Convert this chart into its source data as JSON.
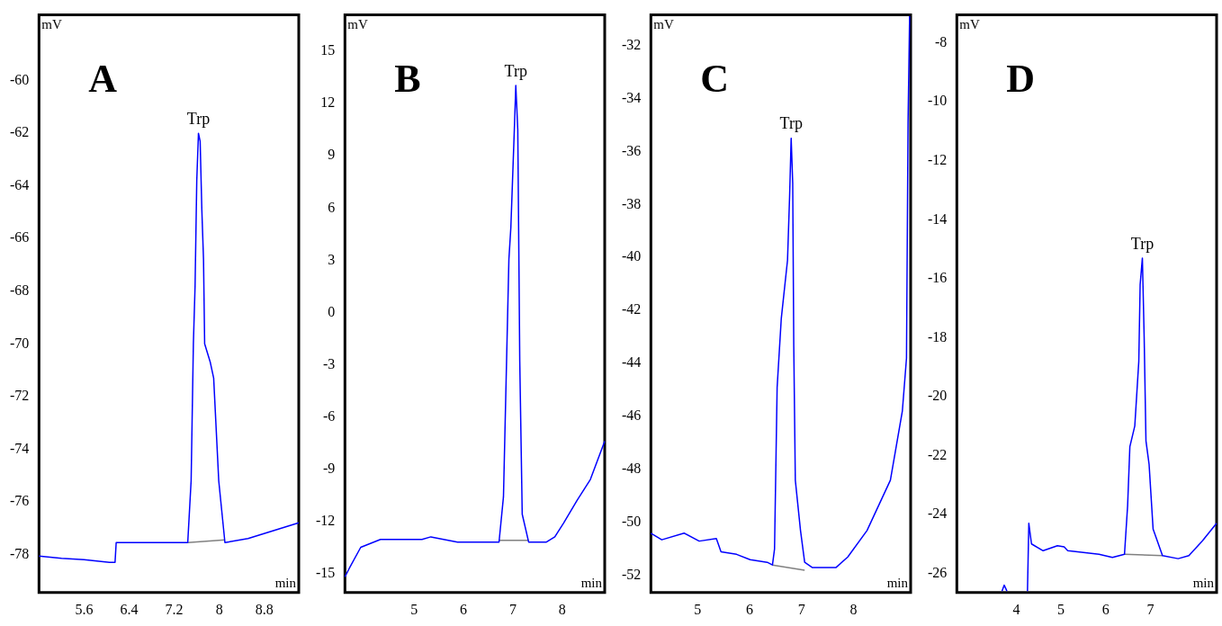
{
  "chart_data": [
    {
      "type": "line",
      "title": "A",
      "xlabel": "min",
      "ylabel": "mV",
      "grid": false,
      "xlim": [
        4.8,
        9.41
      ],
      "ylim": [
        -79.45,
        -57.5
      ],
      "xticks": [
        5.6,
        6.4,
        7.2,
        8,
        8.8
      ],
      "yticks": [
        -60,
        -62,
        -64,
        -66,
        -68,
        -70,
        -72,
        -74,
        -76,
        -78
      ],
      "annotations": [
        {
          "text": "Trp",
          "x": 7.63,
          "y": -62.0
        }
      ],
      "series": [
        {
          "color": "#0000ff",
          "x": [
            4.8,
            5.2,
            5.6,
            6.05,
            6.15,
            6.17,
            6.5,
            7.0,
            7.44,
            7.5,
            7.54,
            7.57,
            7.6,
            7.63,
            7.66,
            7.69,
            7.72,
            7.74,
            7.84,
            7.9,
            7.99,
            8.1,
            8.51,
            8.96,
            9.41
          ],
          "values": [
            -78.06,
            -78.15,
            -78.2,
            -78.3,
            -78.3,
            -77.55,
            -77.55,
            -77.55,
            -77.55,
            -75.2,
            -70.0,
            -67.8,
            -63.8,
            -62.0,
            -62.3,
            -64.9,
            -66.8,
            -70.0,
            -70.7,
            -71.3,
            -75.2,
            -77.55,
            -77.4,
            -77.1,
            -76.8
          ]
        },
        {
          "color": "#808080",
          "x": [
            7.44,
            8.1
          ],
          "values": [
            -77.55,
            -77.45
          ]
        }
      ]
    },
    {
      "type": "line",
      "title": "B",
      "xlabel": "min",
      "ylabel": "mV",
      "grid": false,
      "xlim": [
        3.6,
        8.86
      ],
      "ylim": [
        -16.1,
        17.1
      ],
      "xticks": [
        5,
        6,
        7,
        8
      ],
      "yticks": [
        15,
        12,
        9,
        6,
        3,
        0,
        -3,
        -6,
        -9,
        -12,
        -15
      ],
      "annotations": [
        {
          "text": "Trp",
          "x": 7.06,
          "y": 13.05
        }
      ],
      "series": [
        {
          "color": "#0000ff",
          "x": [
            3.6,
            3.69,
            3.92,
            4.32,
            5.16,
            5.34,
            5.88,
            6.3,
            6.72,
            6.81,
            6.92,
            6.96,
            6.99,
            7.03,
            7.06,
            7.1,
            7.14,
            7.19,
            7.32,
            7.68,
            7.85,
            8.03,
            8.3,
            8.57,
            8.86
          ],
          "values": [
            -15.2,
            -14.7,
            -13.5,
            -13.05,
            -13.05,
            -12.9,
            -13.2,
            -13.2,
            -13.2,
            -10.6,
            3.05,
            4.9,
            7.3,
            10.5,
            13.05,
            10.5,
            -2.8,
            -11.6,
            -13.2,
            -13.2,
            -12.9,
            -12.1,
            -10.8,
            -9.6,
            -7.4
          ]
        },
        {
          "color": "#808080",
          "x": [
            6.72,
            7.32
          ],
          "values": [
            -13.1,
            -13.1
          ]
        }
      ]
    },
    {
      "type": "line",
      "title": "C",
      "xlabel": "min",
      "ylabel": "mV",
      "grid": false,
      "xlim": [
        4.1,
        9.1
      ],
      "ylim": [
        -52.64,
        -30.85
      ],
      "xticks": [
        5,
        6,
        7,
        8
      ],
      "yticks": [
        -32,
        -34,
        -36,
        -38,
        -40,
        -42,
        -44,
        -46,
        -48,
        -50,
        -52
      ],
      "annotations": [
        {
          "text": "Trp",
          "x": 6.8,
          "y": -35.5
        }
      ],
      "series": [
        {
          "color": "#0000ff",
          "x": [
            4.1,
            4.31,
            4.74,
            5.03,
            5.36,
            5.45,
            5.75,
            6.01,
            6.34,
            6.44,
            6.48,
            6.53,
            6.61,
            6.73,
            6.77,
            6.8,
            6.83,
            6.85,
            6.88,
            6.98,
            7.06,
            7.21,
            7.66,
            7.89,
            8.26,
            8.71,
            8.94,
            9.02,
            9.05,
            9.08
          ],
          "values": [
            -50.4,
            -50.65,
            -50.4,
            -50.7,
            -50.6,
            -51.1,
            -51.2,
            -51.4,
            -51.5,
            -51.6,
            -51.0,
            -44.9,
            -42.3,
            -40.1,
            -37.7,
            -35.5,
            -37.2,
            -43.3,
            -48.4,
            -50.3,
            -51.5,
            -51.7,
            -51.7,
            -51.3,
            -50.3,
            -48.4,
            -45.8,
            -43.8,
            -34.9,
            -30.9
          ]
        },
        {
          "color": "#808080",
          "x": [
            6.44,
            7.06
          ],
          "values": [
            -51.6,
            -51.8
          ]
        }
      ]
    },
    {
      "type": "line",
      "title": "D",
      "xlabel": "min",
      "ylabel": "mV",
      "grid": false,
      "xlim": [
        2.67,
        8.48
      ],
      "ylim": [
        -26.65,
        -7.05
      ],
      "xticks": [
        4,
        5,
        6,
        7
      ],
      "yticks": [
        -8,
        -10,
        -12,
        -14,
        -16,
        -18,
        -20,
        -22,
        -24,
        -26
      ],
      "annotations": [
        {
          "text": "Trp",
          "x": 6.82,
          "y": -15.3
        }
      ],
      "series": [
        {
          "color": "#0000ff",
          "x": [
            3.68,
            3.73,
            3.79,
            4.0,
            4.25,
            4.28,
            4.34,
            4.6,
            4.92,
            5.07,
            5.15,
            5.85,
            6.15,
            6.42,
            6.49,
            6.54,
            6.65,
            6.74,
            6.77,
            6.82,
            6.86,
            6.9,
            6.97,
            7.06,
            7.27,
            7.62,
            7.86,
            8.16,
            8.48
          ],
          "values": [
            -26.6,
            -26.4,
            -26.6,
            null,
            -26.6,
            -24.3,
            -25.0,
            -25.23,
            -25.06,
            -25.1,
            -25.23,
            -25.35,
            -25.46,
            -25.35,
            -23.7,
            -21.7,
            -21.0,
            -18.8,
            -16.2,
            -15.3,
            -18.0,
            -21.5,
            -22.3,
            -24.5,
            -25.4,
            -25.5,
            -25.4,
            -24.9,
            -24.3
          ]
        },
        {
          "color": "#808080",
          "x": [
            6.42,
            7.27
          ],
          "values": [
            -25.35,
            -25.4
          ]
        }
      ]
    }
  ]
}
